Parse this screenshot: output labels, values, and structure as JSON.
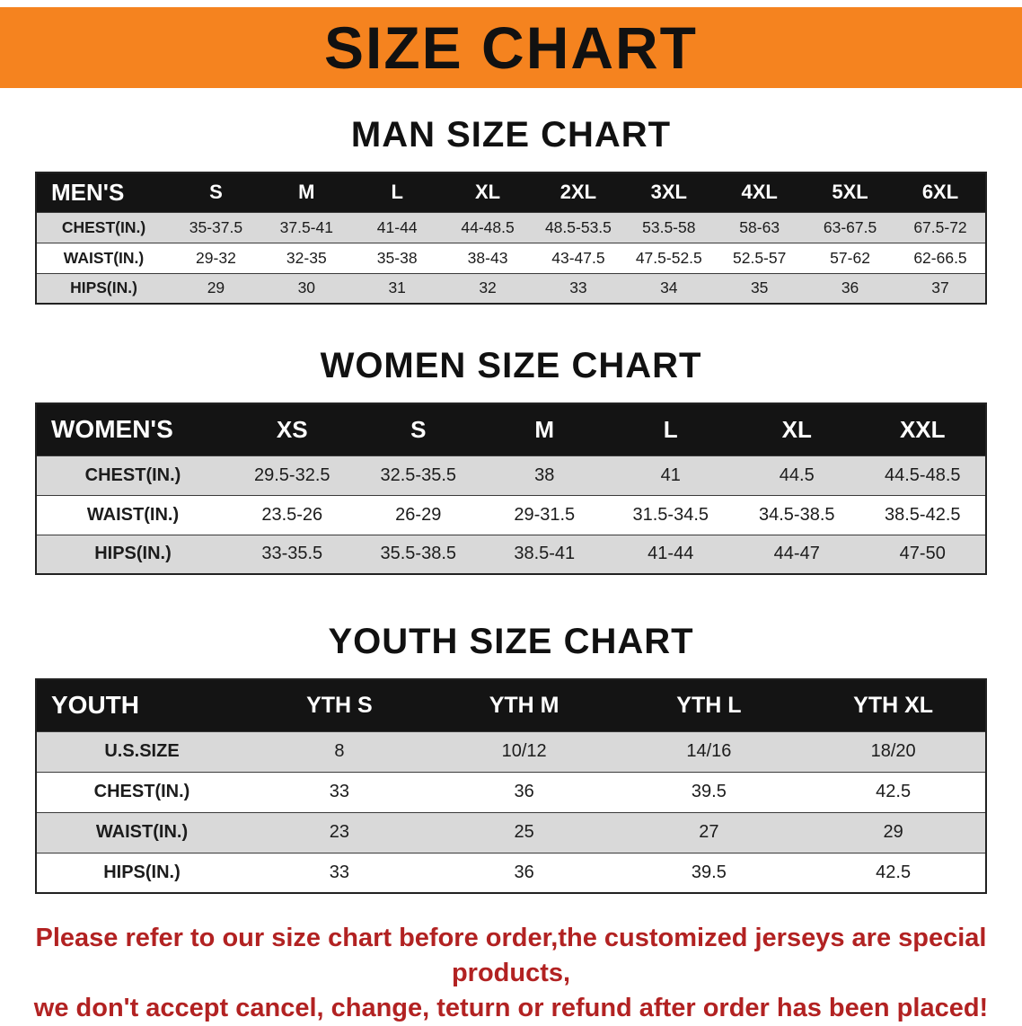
{
  "colors": {
    "accent": "#f5831f",
    "head-bg": "#141414",
    "stripe": "#d9d9d9",
    "note": "#b22222"
  },
  "banner": {
    "title": "SIZE CHART"
  },
  "sections": {
    "men": {
      "heading": "MAN SIZE CHART"
    },
    "women": {
      "heading": "WOMEN SIZE CHART"
    },
    "youth": {
      "heading": "YOUTH SIZE CHART"
    }
  },
  "tables": {
    "mens": {
      "id": "mens",
      "label": "MEN'S",
      "columns": [
        "S",
        "M",
        "L",
        "XL",
        "2XL",
        "3XL",
        "4XL",
        "5XL",
        "6XL"
      ],
      "rows": [
        {
          "label": "CHEST(IN.)",
          "values": [
            "35-37.5",
            "37.5-41",
            "41-44",
            "44-48.5",
            "48.5-53.5",
            "53.5-58",
            "58-63",
            "63-67.5",
            "67.5-72"
          ]
        },
        {
          "label": "WAIST(IN.)",
          "values": [
            "29-32",
            "32-35",
            "35-38",
            "38-43",
            "43-47.5",
            "47.5-52.5",
            "52.5-57",
            "57-62",
            "62-66.5"
          ]
        },
        {
          "label": "HIPS(IN.)",
          "values": [
            "29",
            "30",
            "31",
            "32",
            "33",
            "34",
            "35",
            "36",
            "37"
          ]
        }
      ]
    },
    "womens": {
      "id": "womens",
      "label": "WOMEN'S",
      "columns": [
        "XS",
        "S",
        "M",
        "L",
        "XL",
        "XXL"
      ],
      "rows": [
        {
          "label": "CHEST(IN.)",
          "values": [
            "29.5-32.5",
            "32.5-35.5",
            "38",
            "41",
            "44.5",
            "44.5-48.5"
          ]
        },
        {
          "label": "WAIST(IN.)",
          "values": [
            "23.5-26",
            "26-29",
            "29-31.5",
            "31.5-34.5",
            "34.5-38.5",
            "38.5-42.5"
          ]
        },
        {
          "label": "HIPS(IN.)",
          "values": [
            "33-35.5",
            "35.5-38.5",
            "38.5-41",
            "41-44",
            "44-47",
            "47-50"
          ]
        }
      ]
    },
    "youth": {
      "id": "youth",
      "label": "YOUTH",
      "columns": [
        "YTH S",
        "YTH M",
        "YTH L",
        "YTH XL"
      ],
      "rows": [
        {
          "label": "U.S.SIZE",
          "values": [
            "8",
            "10/12",
            "14/16",
            "18/20"
          ]
        },
        {
          "label": "CHEST(IN.)",
          "values": [
            "33",
            "36",
            "39.5",
            "42.5"
          ]
        },
        {
          "label": "WAIST(IN.)",
          "values": [
            "23",
            "25",
            "27",
            "29"
          ]
        },
        {
          "label": "HIPS(IN.)",
          "values": [
            "33",
            "36",
            "39.5",
            "42.5"
          ]
        }
      ]
    }
  },
  "note": {
    "lines": [
      "Please refer to our size chart before order,the customized jerseys are special products,",
      "we don't accept cancel, change, teturn or refund after order has been placed!"
    ]
  }
}
